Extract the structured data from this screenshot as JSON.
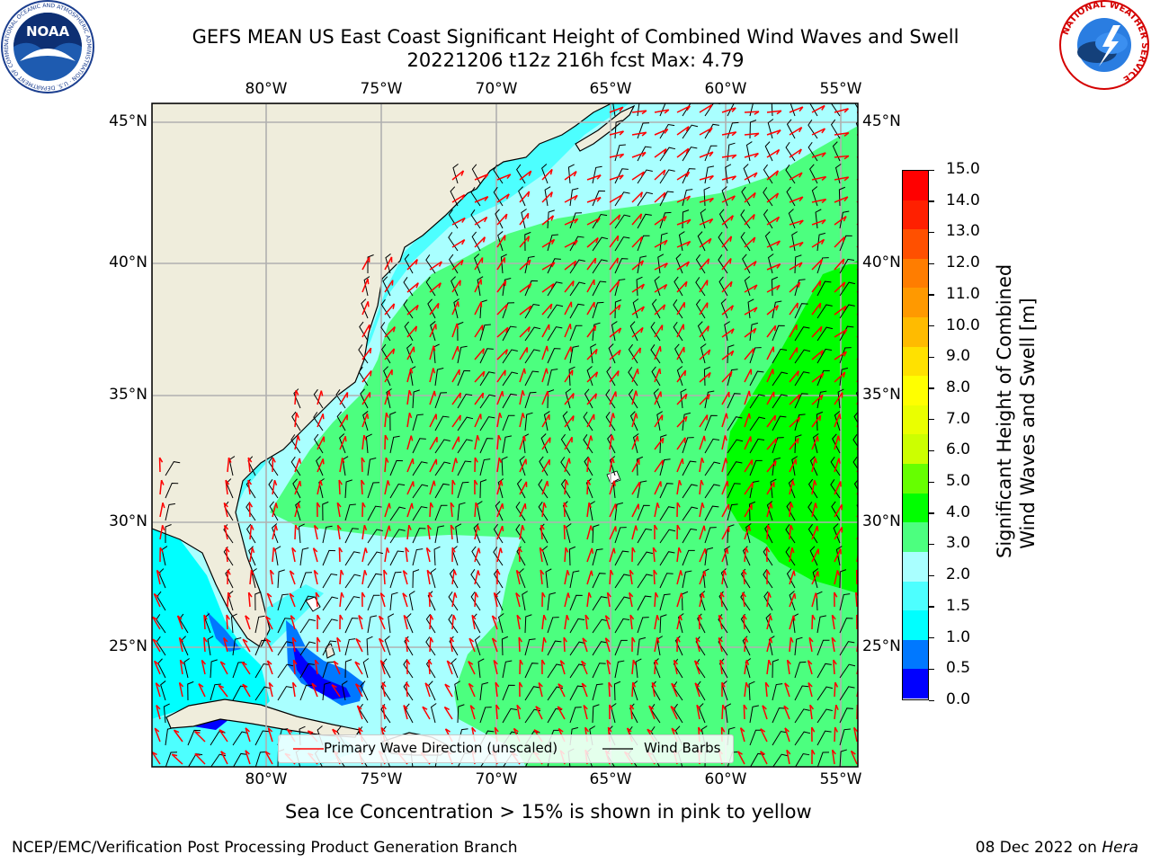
{
  "title": {
    "line1": "GEFS MEAN US East Coast Significant Height of Combined Wind Waves and Swell",
    "line2": "20221206 t12z 216h fcst   Max: 4.79"
  },
  "map": {
    "lon_ticks_top": [
      "80°W",
      "75°W",
      "70°W",
      "65°W",
      "60°W",
      "55°W"
    ],
    "lon_ticks_bottom": [
      "80°W",
      "75°W",
      "70°W",
      "65°W",
      "60°W",
      "55°W"
    ],
    "lat_ticks_left": [
      "45°N",
      "40°N",
      "35°N",
      "30°N",
      "25°N"
    ],
    "lat_ticks_right": [
      "45°N",
      "40°N",
      "35°N",
      "30°N",
      "25°N"
    ],
    "colors": {
      "land": "#efeddc",
      "coast": "#000000",
      "grid": "#b0b0b0",
      "wave_arrow": "#ff0000",
      "wind_barb": "#000000"
    }
  },
  "legend": {
    "wave_label": "Primary Wave Direction (unscaled)",
    "wind_label": "Wind Barbs"
  },
  "colorbar": {
    "title_line1": "Significant Height of Combined",
    "title_line2": "Wind Waves and Swell [m]",
    "ticks": [
      "15.0",
      "14.0",
      "13.0",
      "12.0",
      "11.0",
      "10.0",
      "9.0",
      "8.0",
      "7.0",
      "6.0",
      "5.0",
      "4.0",
      "3.0",
      "2.0",
      "1.5",
      "1.0",
      "0.5",
      "0.0"
    ],
    "bins_top_to_bottom": [
      "#ff0000",
      "#ff2000",
      "#ff5000",
      "#ff7d00",
      "#ff9900",
      "#ffbb00",
      "#ffe100",
      "#ffff00",
      "#eaff00",
      "#ccff00",
      "#66ff00",
      "#00ff00",
      "#4cff7f",
      "#a9ffff",
      "#4dffff",
      "#00ffff",
      "#0078ff",
      "#0000ff"
    ]
  },
  "note": "Sea Ice Concentration > 15% is shown in pink to yellow",
  "footer": {
    "left": "NCEP/EMC/Verification Post Processing Product Generation Branch",
    "date": "08 Dec 2022 on ",
    "machine": "Hera"
  },
  "logos": {
    "noaa_text": "NOAA",
    "noaa_ring": "NATIONAL OCEANIC AND ATMOSPHERIC ADMINISTRATION · U.S. DEPARTMENT OF COMMERCE",
    "nws_ring": "NATIONAL WEATHER SERVICE"
  }
}
